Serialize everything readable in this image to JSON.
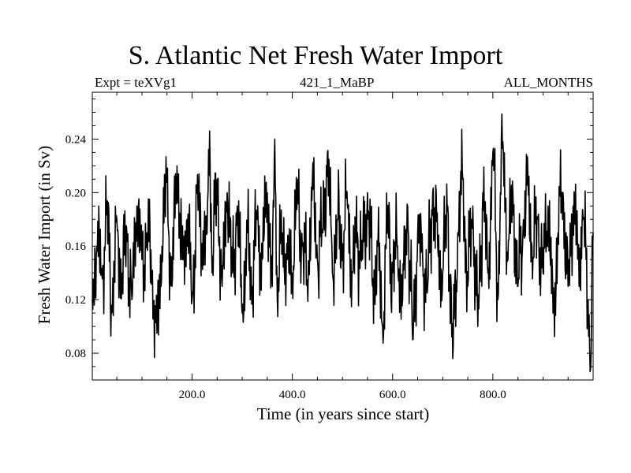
{
  "chart_data": {
    "type": "line",
    "title": "S. Atlantic Net Fresh Water Import",
    "subtitle_left": "Expt = teXVg1",
    "subtitle_center": "421_1_MaBP",
    "subtitle_right": "ALL_MONTHS",
    "xlabel": "Time (in years since start)",
    "ylabel": "Fresh Water Import (in Sv)",
    "xlim": [
      1,
      1000
    ],
    "ylim": [
      0.06,
      0.275
    ],
    "x_ticks": [
      200,
      400,
      600,
      800
    ],
    "x_tick_labels": [
      "200.0",
      "400.0",
      "600.0",
      "800.0"
    ],
    "y_ticks": [
      0.08,
      0.12,
      0.16,
      0.2,
      0.24
    ],
    "y_tick_labels": [
      "0.08",
      "0.12",
      "0.16",
      "0.20",
      "0.24"
    ],
    "series": [
      {
        "name": "Net Fresh Water Import",
        "x": [
          1,
          10,
          20,
          30,
          40,
          50,
          60,
          70,
          80,
          90,
          100,
          110,
          120,
          130,
          140,
          150,
          160,
          170,
          180,
          190,
          200,
          210,
          220,
          230,
          235,
          240,
          250,
          260,
          270,
          280,
          290,
          300,
          310,
          320,
          330,
          340,
          350,
          360,
          365,
          370,
          380,
          390,
          400,
          410,
          420,
          430,
          440,
          450,
          460,
          470,
          480,
          490,
          500,
          510,
          520,
          530,
          540,
          550,
          560,
          570,
          580,
          590,
          600,
          610,
          620,
          630,
          640,
          650,
          660,
          670,
          680,
          690,
          700,
          710,
          720,
          730,
          740,
          750,
          760,
          770,
          780,
          790,
          800,
          810,
          815,
          820,
          830,
          840,
          850,
          860,
          870,
          880,
          890,
          900,
          910,
          920,
          930,
          940,
          950,
          960,
          970,
          980,
          990,
          995,
          1000
        ],
        "y": [
          0.12,
          0.16,
          0.14,
          0.19,
          0.11,
          0.18,
          0.13,
          0.17,
          0.12,
          0.19,
          0.15,
          0.17,
          0.14,
          0.095,
          0.16,
          0.21,
          0.13,
          0.22,
          0.15,
          0.18,
          0.12,
          0.2,
          0.16,
          0.17,
          0.246,
          0.14,
          0.21,
          0.13,
          0.2,
          0.14,
          0.19,
          0.11,
          0.17,
          0.13,
          0.18,
          0.15,
          0.2,
          0.13,
          0.24,
          0.12,
          0.17,
          0.15,
          0.14,
          0.2,
          0.16,
          0.13,
          0.21,
          0.15,
          0.17,
          0.23,
          0.14,
          0.18,
          0.16,
          0.19,
          0.14,
          0.17,
          0.15,
          0.2,
          0.13,
          0.16,
          0.1,
          0.18,
          0.14,
          0.16,
          0.12,
          0.19,
          0.09,
          0.17,
          0.15,
          0.13,
          0.2,
          0.16,
          0.14,
          0.19,
          0.076,
          0.17,
          0.21,
          0.13,
          0.19,
          0.1,
          0.2,
          0.14,
          0.23,
          0.12,
          0.2,
          0.238,
          0.15,
          0.2,
          0.13,
          0.17,
          0.21,
          0.15,
          0.18,
          0.14,
          0.19,
          0.11,
          0.17,
          0.2,
          0.13,
          0.19,
          0.15,
          0.18,
          0.12,
          0.069,
          0.17
        ]
      }
    ]
  }
}
